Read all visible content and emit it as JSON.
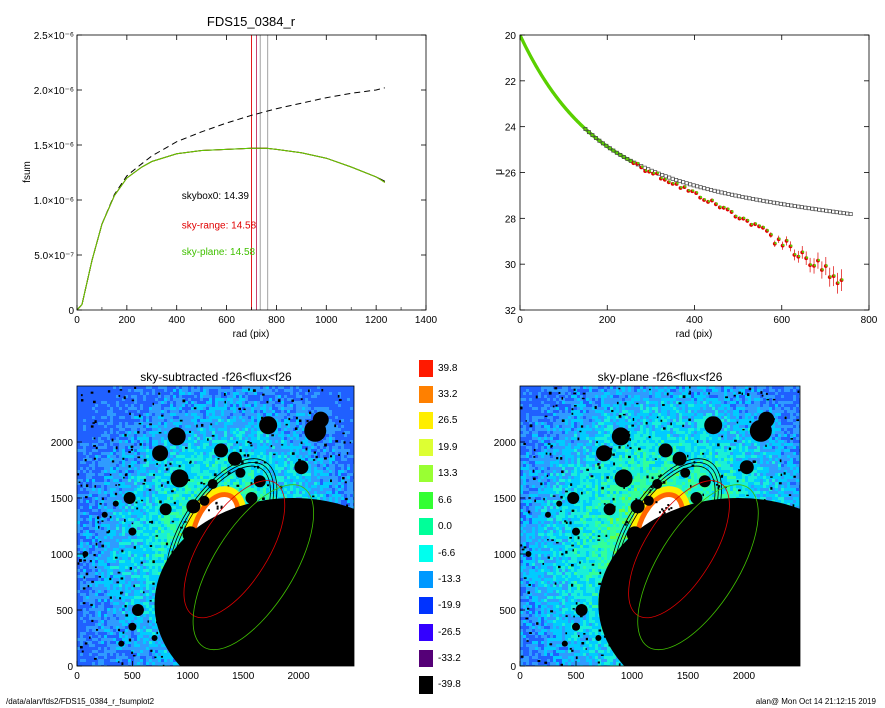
{
  "footer": {
    "path": "/data/alan/fds2/FDS15_0384_r_fsumplot2",
    "stamp": "alan@  Mon Oct 14 21:12:15 2019"
  },
  "chart_data": [
    {
      "type": "line",
      "title": "FDS15_0384_r",
      "xlabel": "rad (pix)",
      "ylabel": "fsum",
      "xlim": [
        0,
        1400
      ],
      "ylim": [
        0,
        2.5e-06
      ],
      "xticks": [
        "0",
        "200",
        "400",
        "600",
        "800",
        "1000",
        "1200",
        "1400"
      ],
      "yticks": [
        "0",
        "5.0×10⁻⁷",
        "1.0×10⁻⁶",
        "1.5×10⁻⁶",
        "2.0×10⁻⁶",
        "2.5×10⁻⁶"
      ],
      "ytick_values": [
        0,
        5e-07,
        1e-06,
        1.5e-06,
        2e-06,
        2.5e-06
      ],
      "series": [
        {
          "style": "dashed",
          "color": "#000000",
          "x": [
            0,
            20,
            60,
            100,
            150,
            200,
            260,
            300,
            400,
            500,
            600,
            700,
            800,
            900,
            1000,
            1100,
            1200,
            1235
          ],
          "y": [
            0,
            5e-08,
            4.5e-07,
            7.8e-07,
            1.05e-06,
            1.22e-06,
            1.33e-06,
            1.4e-06,
            1.53e-06,
            1.62e-06,
            1.7e-06,
            1.77e-06,
            1.83e-06,
            1.88e-06,
            1.93e-06,
            1.97e-06,
            2e-06,
            2.02e-06
          ]
        },
        {
          "style": "solid",
          "color": "#000000",
          "x": [
            0,
            20,
            60,
            100,
            150,
            200,
            260,
            300,
            400,
            500,
            600,
            700,
            760,
            800,
            900,
            1000,
            1100,
            1200,
            1235
          ],
          "y": [
            0,
            5e-08,
            4.5e-07,
            7.8e-07,
            1.04e-06,
            1.2e-06,
            1.3e-06,
            1.35e-06,
            1.42e-06,
            1.45e-06,
            1.46e-06,
            1.47e-06,
            1.47e-06,
            1.46e-06,
            1.43e-06,
            1.38e-06,
            1.3e-06,
            1.21e-06,
            1.17e-06
          ]
        },
        {
          "style": "solid",
          "color": "#e00000",
          "x": [
            0,
            20,
            60,
            100,
            150,
            200,
            260,
            300,
            400,
            500,
            600,
            700,
            760,
            800,
            900,
            1000,
            1100,
            1200,
            1235
          ],
          "y": [
            0,
            5e-08,
            4.5e-07,
            7.8e-07,
            1.04e-06,
            1.2e-06,
            1.3e-06,
            1.35e-06,
            1.42e-06,
            1.45e-06,
            1.46e-06,
            1.47e-06,
            1.47e-06,
            1.46e-06,
            1.43e-06,
            1.38e-06,
            1.3e-06,
            1.21e-06,
            1.16e-06
          ]
        },
        {
          "style": "solid",
          "color": "#5ad000",
          "x": [
            0,
            20,
            60,
            100,
            150,
            200,
            260,
            300,
            400,
            500,
            600,
            700,
            760,
            800,
            900,
            1000,
            1100,
            1200,
            1235
          ],
          "y": [
            0,
            5e-08,
            4.5e-07,
            7.8e-07,
            1.04e-06,
            1.2e-06,
            1.3e-06,
            1.35e-06,
            1.42e-06,
            1.45e-06,
            1.46e-06,
            1.47e-06,
            1.47e-06,
            1.46e-06,
            1.43e-06,
            1.38e-06,
            1.3e-06,
            1.21e-06,
            1.16e-06
          ]
        }
      ],
      "vlines": [
        {
          "x": 700,
          "color": "#e00000"
        },
        {
          "x": 720,
          "color": "#c03060"
        },
        {
          "x": 735,
          "color": "#999999"
        },
        {
          "x": 765,
          "color": "#999999"
        }
      ],
      "annotations": [
        {
          "text": "skybox0: 14.39",
          "color": "#000000",
          "x": 420,
          "y": 1.01e-06
        },
        {
          "text": "sky-range: 14.58",
          "color": "#e00000",
          "x": 420,
          "y": 7.4e-07
        },
        {
          "text": "sky-plane: 14.58",
          "color": "#40c000",
          "x": 420,
          "y": 5e-07
        }
      ]
    },
    {
      "type": "scatter",
      "xlabel": "rad (pix)",
      "ylabel": "μ",
      "xlim": [
        0,
        800
      ],
      "ylim": [
        32,
        20
      ],
      "xticks": [
        "0",
        "200",
        "400",
        "600",
        "800"
      ],
      "yticks": [
        "20",
        "22",
        "24",
        "26",
        "28",
        "30",
        "32"
      ],
      "series": [
        {
          "marker": "square",
          "color": "#444444",
          "r0": 20.0,
          "r_end": 760,
          "step": 10,
          "curve": "black"
        },
        {
          "marker": "circle",
          "color": "#e00000",
          "r0": 20.0,
          "r_end": 740,
          "curve": "red"
        },
        {
          "marker": "dot",
          "color": "#5ad000",
          "r0": 20.0,
          "r_end": 740,
          "curve": "red"
        }
      ]
    },
    {
      "type": "heatmap",
      "title": "sky-subtracted -f26<flux<f26",
      "xlim": [
        0,
        2500
      ],
      "ylim": [
        0,
        2500
      ],
      "xticks": [
        "0",
        "500",
        "1000",
        "1500",
        "2000"
      ],
      "yticks": [
        "0",
        "500",
        "1000",
        "1500",
        "2000"
      ]
    },
    {
      "type": "heatmap",
      "title": "sky-plane -f26<flux<f26",
      "xlim": [
        0,
        2500
      ],
      "ylim": [
        0,
        2500
      ],
      "xticks": [
        "0",
        "500",
        "1000",
        "1500",
        "2000"
      ],
      "yticks": [
        "0",
        "500",
        "1000",
        "1500",
        "2000"
      ]
    }
  ],
  "colorbar": {
    "labels": [
      "39.8",
      "33.2",
      "26.5",
      "19.9",
      "13.3",
      "6.6",
      "0.0",
      "-6.6",
      "-13.3",
      "-19.9",
      "-26.5",
      "-33.2",
      "-39.8"
    ],
    "colors": [
      "#ff1a00",
      "#ff8000",
      "#ffee00",
      "#ddff33",
      "#99ff33",
      "#33ff33",
      "#00ff99",
      "#00ffee",
      "#0099ff",
      "#0033ff",
      "#3300ff",
      "#550077",
      "#000000"
    ]
  },
  "image_palette": [
    "#2060ff",
    "#2f9bff",
    "#00ccff",
    "#19f0d8",
    "#33ff99",
    "#66ff44",
    "#aaff22",
    "#ffee00",
    "#ff8800",
    "#ff2200"
  ]
}
